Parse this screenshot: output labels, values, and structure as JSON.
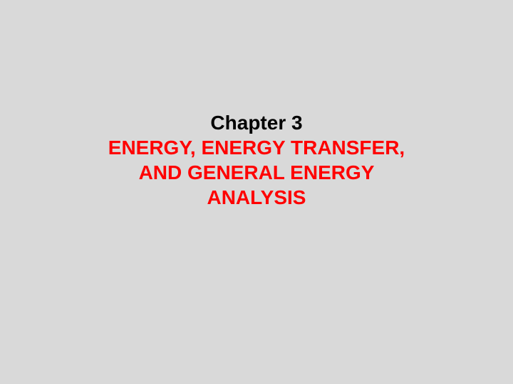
{
  "slide": {
    "chapter_label": "Chapter 3",
    "title_line1": "ENERGY, ENERGY TRANSFER,",
    "title_line2": "AND GENERAL ENERGY",
    "title_line3": "ANALYSIS",
    "background_color": "#d9d9d9",
    "label_color": "#000000",
    "title_color": "#ff0000",
    "font_family": "Arial",
    "font_size_pt": 28,
    "font_weight": "bold"
  }
}
